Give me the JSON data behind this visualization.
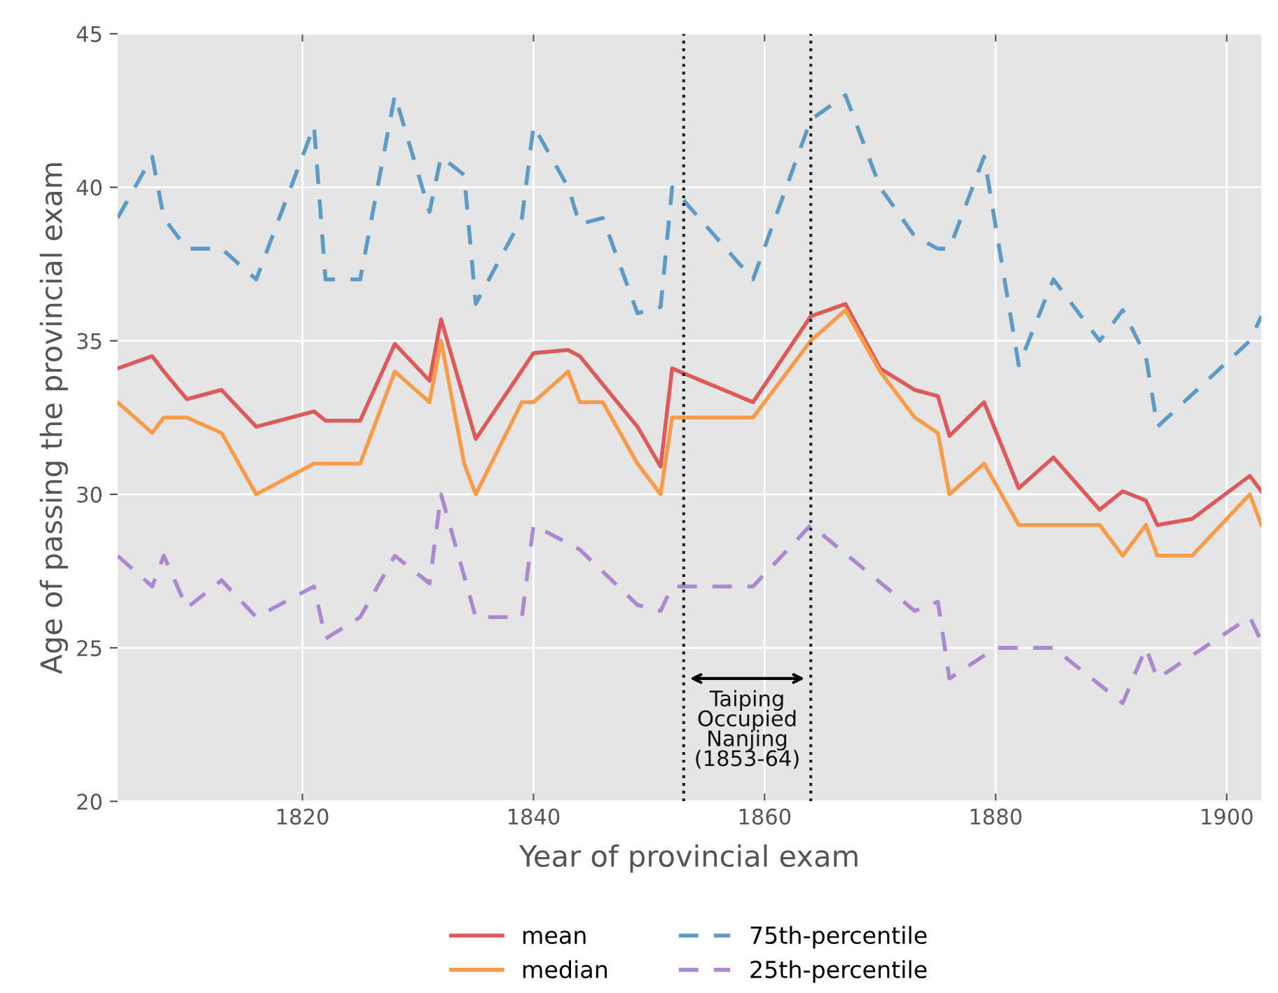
{
  "chart_data": {
    "type": "line",
    "xlabel": "Year of provincial exam",
    "ylabel": "Age of passing the provincial exam",
    "xlim": [
      1804,
      1903
    ],
    "xticks": [
      1820,
      1840,
      1860,
      1880,
      1900
    ],
    "ylim": [
      20,
      45
    ],
    "yticks": [
      20,
      25,
      30,
      35,
      40,
      45
    ],
    "grid": true,
    "legend": "bottom",
    "marker": "none",
    "series": [
      {
        "name": "mean",
        "color": "#dc5a5a",
        "line_style": "solid",
        "x": [
          1804,
          1807,
          1808,
          1810,
          1813,
          1816,
          1821,
          1822,
          1825,
          1828,
          1831,
          1832,
          1835,
          1840,
          1843,
          1844,
          1849,
          1851,
          1852,
          1859,
          1864,
          1867,
          1870,
          1873,
          1875,
          1876,
          1879,
          1882,
          1885,
          1889,
          1891,
          1893,
          1894,
          1897,
          1902,
          1903
        ],
        "values": [
          34.1,
          34.5,
          34.0,
          33.1,
          33.4,
          32.2,
          32.7,
          32.4,
          32.4,
          34.9,
          33.7,
          35.7,
          31.8,
          34.6,
          34.7,
          34.5,
          32.2,
          30.9,
          34.1,
          33.0,
          35.8,
          36.2,
          34.1,
          33.4,
          33.2,
          31.9,
          33.0,
          30.2,
          31.2,
          29.5,
          30.1,
          29.8,
          29.0,
          29.2,
          30.6,
          30.1
        ]
      },
      {
        "name": "median",
        "color": "#f89c4a",
        "line_style": "solid",
        "x": [
          1804,
          1807,
          1808,
          1810,
          1813,
          1816,
          1821,
          1825,
          1828,
          1831,
          1832,
          1834,
          1835,
          1839,
          1840,
          1843,
          1844,
          1846,
          1849,
          1851,
          1852,
          1859,
          1864,
          1867,
          1870,
          1873,
          1875,
          1876,
          1879,
          1882,
          1889,
          1891,
          1893,
          1894,
          1897,
          1902,
          1903
        ],
        "values": [
          33.0,
          32.0,
          32.5,
          32.5,
          32.0,
          30.0,
          31.0,
          31.0,
          34.0,
          33.0,
          35.0,
          31.0,
          30.0,
          33.0,
          33.0,
          34.0,
          33.0,
          33.0,
          31.0,
          30.0,
          32.5,
          32.5,
          35.0,
          36.0,
          34.0,
          32.5,
          32.0,
          30.0,
          31.0,
          29.0,
          29.0,
          28.0,
          29.0,
          28.0,
          28.0,
          30.0,
          29.0
        ]
      },
      {
        "name": "75th-percentile",
        "color": "#5b9bc6",
        "line_style": "dashed",
        "x": [
          1804,
          1807,
          1808,
          1810,
          1813,
          1816,
          1821,
          1822,
          1825,
          1828,
          1831,
          1832,
          1834,
          1835,
          1839,
          1840,
          1843,
          1844,
          1846,
          1849,
          1851,
          1852,
          1859,
          1864,
          1867,
          1870,
          1873,
          1875,
          1876,
          1879,
          1882,
          1885,
          1889,
          1891,
          1893,
          1894,
          1902,
          1903
        ],
        "values": [
          39.0,
          41.0,
          39.0,
          38.0,
          38.0,
          37.0,
          42.0,
          37.0,
          37.0,
          43.0,
          39.2,
          41.0,
          40.4,
          36.2,
          39.0,
          42.0,
          40.0,
          38.8,
          39.0,
          35.9,
          36.1,
          40.0,
          37.0,
          42.2,
          43.0,
          40.0,
          38.4,
          38.0,
          38.0,
          41.0,
          34.2,
          37.0,
          35.0,
          36.0,
          34.5,
          32.2,
          35.0,
          35.8
        ]
      },
      {
        "name": "25th-percentile",
        "color": "#ab88cf",
        "line_style": "dashed",
        "x": [
          1804,
          1807,
          1808,
          1810,
          1813,
          1816,
          1821,
          1822,
          1825,
          1828,
          1831,
          1832,
          1835,
          1839,
          1840,
          1844,
          1849,
          1851,
          1852,
          1859,
          1864,
          1873,
          1875,
          1876,
          1880,
          1885,
          1891,
          1893,
          1894,
          1902,
          1903
        ],
        "values": [
          28.0,
          27.0,
          28.0,
          26.3,
          27.2,
          26.0,
          27.0,
          25.3,
          26.0,
          28.0,
          27.1,
          30.0,
          26.0,
          26.0,
          29.0,
          28.2,
          26.4,
          26.2,
          27.0,
          27.0,
          29.0,
          26.2,
          26.5,
          24.0,
          25.0,
          25.0,
          23.2,
          25.0,
          24.0,
          26.0,
          25.2
        ]
      }
    ],
    "ref_lines": [
      {
        "axis": "x",
        "value": 1853,
        "color": "#222222",
        "line_style": "dotted"
      },
      {
        "axis": "x",
        "value": 1864,
        "color": "#222222",
        "line_style": "dotted"
      }
    ],
    "annotations": [
      "Taiping\nOccupied\nNanjing\n(1853-64)"
    ]
  }
}
